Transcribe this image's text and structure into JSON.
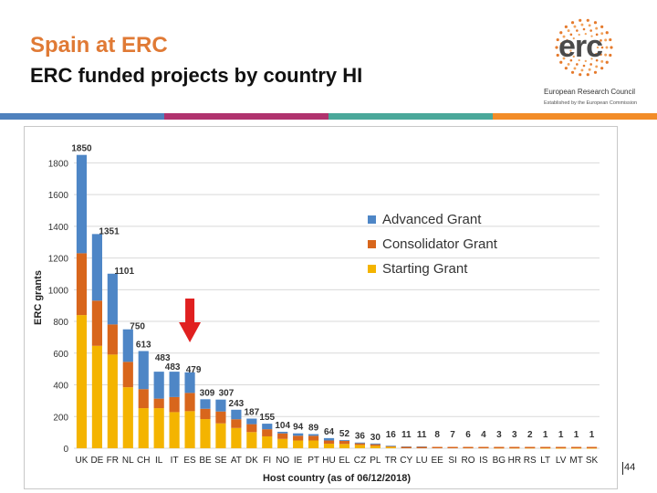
{
  "slide": {
    "title": "Spain at ERC",
    "subtitle": "ERC funded projects by country HI",
    "page_number": "44"
  },
  "logo": {
    "text": "erc",
    "caption": "European Research Council",
    "tagline": "Established by the European Commission"
  },
  "colors": {
    "title": "#e07a35",
    "stripe": [
      "#4f81bd",
      "#b0336e",
      "#4aa89a",
      "#f28c28"
    ],
    "advanced": "#4e86c6",
    "consolidator": "#d8661c",
    "starting": "#f4b400",
    "arrow": "#e02020"
  },
  "chart_data": {
    "type": "bar",
    "stacked": true,
    "ylabel": "ERC grants",
    "xlabel": "Host country (as of 06/12/2018)",
    "ylim": [
      0,
      1900
    ],
    "yticks": [
      0,
      200,
      400,
      600,
      800,
      1000,
      1200,
      1400,
      1600,
      1800
    ],
    "grid": true,
    "legend_position": "right",
    "categories": [
      "UK",
      "DE",
      "FR",
      "NL",
      "CH",
      "IL",
      "IT",
      "ES",
      "BE",
      "SE",
      "AT",
      "DK",
      "FI",
      "NO",
      "IE",
      "PT",
      "HU",
      "EL",
      "CZ",
      "PL",
      "TR",
      "CY",
      "LU",
      "EE",
      "SI",
      "RO",
      "IS",
      "BG",
      "HR",
      "RS",
      "LT",
      "LV",
      "MT",
      "SK"
    ],
    "totals": [
      1850,
      1351,
      1101,
      750,
      613,
      483,
      483,
      479,
      309,
      307,
      243,
      187,
      155,
      104,
      94,
      89,
      64,
      52,
      36,
      30,
      16,
      11,
      11,
      8,
      7,
      6,
      4,
      3,
      3,
      2,
      1,
      1,
      1,
      1
    ],
    "total_labels": [
      "1850",
      "1351",
      "1101",
      "750",
      "613",
      "483",
      "483",
      "479",
      "309",
      "307",
      "243",
      "187",
      "155",
      "104",
      "94",
      "89",
      "64",
      "52",
      "36",
      "30",
      "16",
      "11",
      "11",
      "8",
      "7",
      "6",
      "4",
      "3",
      "3",
      "2",
      "1",
      "1",
      "1",
      "1"
    ],
    "series": [
      {
        "name": "Advanced Grant",
        "values": [
          620,
          420,
          320,
          205,
          240,
          170,
          160,
          130,
          60,
          75,
          60,
          35,
          35,
          10,
          15,
          10,
          15,
          5,
          5,
          5,
          2,
          1,
          1,
          1,
          1,
          1,
          0,
          0,
          0,
          0,
          0,
          0,
          0,
          0
        ]
      },
      {
        "name": "Consolidator Grant",
        "values": [
          390,
          285,
          190,
          160,
          120,
          60,
          95,
          115,
          65,
          75,
          55,
          50,
          45,
          35,
          30,
          30,
          20,
          20,
          10,
          10,
          5,
          4,
          4,
          2,
          2,
          2,
          1,
          1,
          1,
          0,
          0,
          0,
          0,
          0
        ]
      },
      {
        "name": "Starting Grant",
        "values": [
          840,
          646,
          591,
          385,
          253,
          253,
          228,
          234,
          184,
          157,
          128,
          102,
          75,
          59,
          49,
          49,
          29,
          27,
          21,
          15,
          9,
          6,
          6,
          5,
          4,
          3,
          3,
          2,
          2,
          2,
          1,
          1,
          1,
          1
        ]
      }
    ],
    "annotation": "arrow pointing to ES"
  }
}
